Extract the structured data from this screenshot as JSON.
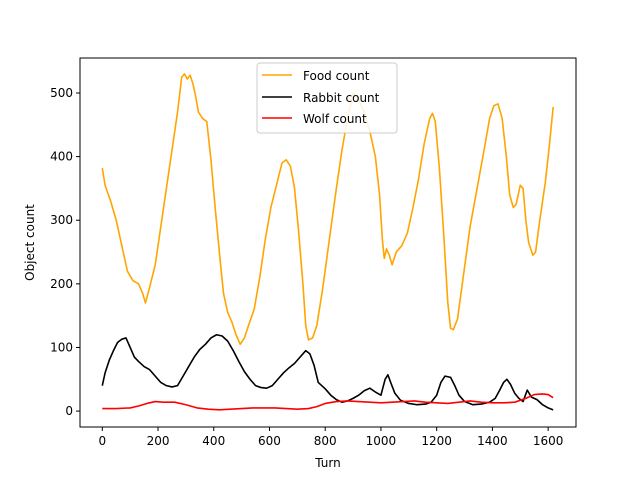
{
  "chart_data": {
    "type": "line",
    "title": "",
    "xlabel": "Turn",
    "ylabel": "Object count",
    "xlim": [
      -80,
      1700
    ],
    "ylim": [
      -25,
      555
    ],
    "xticks": [
      0,
      200,
      400,
      600,
      800,
      1000,
      1200,
      1400,
      1600
    ],
    "yticks": [
      0,
      100,
      200,
      300,
      400,
      500
    ],
    "grid": false,
    "legend_position": "upper center",
    "series": [
      {
        "name": "Food count",
        "color": "#ffa500",
        "points": [
          [
            0,
            382
          ],
          [
            10,
            355
          ],
          [
            30,
            330
          ],
          [
            50,
            300
          ],
          [
            70,
            260
          ],
          [
            90,
            220
          ],
          [
            110,
            205
          ],
          [
            130,
            200
          ],
          [
            145,
            185
          ],
          [
            155,
            170
          ],
          [
            170,
            195
          ],
          [
            190,
            230
          ],
          [
            210,
            290
          ],
          [
            230,
            350
          ],
          [
            250,
            410
          ],
          [
            270,
            470
          ],
          [
            285,
            525
          ],
          [
            295,
            530
          ],
          [
            305,
            522
          ],
          [
            315,
            528
          ],
          [
            325,
            515
          ],
          [
            335,
            495
          ],
          [
            345,
            470
          ],
          [
            360,
            460
          ],
          [
            375,
            455
          ],
          [
            390,
            395
          ],
          [
            405,
            320
          ],
          [
            420,
            250
          ],
          [
            435,
            185
          ],
          [
            450,
            155
          ],
          [
            465,
            140
          ],
          [
            480,
            120
          ],
          [
            495,
            105
          ],
          [
            510,
            115
          ],
          [
            525,
            135
          ],
          [
            545,
            160
          ],
          [
            565,
            210
          ],
          [
            585,
            270
          ],
          [
            605,
            320
          ],
          [
            625,
            355
          ],
          [
            645,
            390
          ],
          [
            660,
            395
          ],
          [
            675,
            385
          ],
          [
            690,
            350
          ],
          [
            705,
            280
          ],
          [
            720,
            200
          ],
          [
            730,
            135
          ],
          [
            740,
            112
          ],
          [
            755,
            115
          ],
          [
            770,
            135
          ],
          [
            790,
            190
          ],
          [
            815,
            270
          ],
          [
            840,
            350
          ],
          [
            860,
            410
          ],
          [
            880,
            460
          ],
          [
            900,
            500
          ],
          [
            920,
            490
          ],
          [
            940,
            470
          ],
          [
            960,
            440
          ],
          [
            980,
            400
          ],
          [
            995,
            340
          ],
          [
            1005,
            270
          ],
          [
            1012,
            240
          ],
          [
            1020,
            255
          ],
          [
            1030,
            245
          ],
          [
            1040,
            230
          ],
          [
            1055,
            250
          ],
          [
            1075,
            260
          ],
          [
            1095,
            280
          ],
          [
            1115,
            320
          ],
          [
            1135,
            365
          ],
          [
            1155,
            420
          ],
          [
            1175,
            460
          ],
          [
            1185,
            468
          ],
          [
            1195,
            455
          ],
          [
            1210,
            380
          ],
          [
            1225,
            280
          ],
          [
            1240,
            170
          ],
          [
            1250,
            130
          ],
          [
            1260,
            128
          ],
          [
            1275,
            145
          ],
          [
            1295,
            210
          ],
          [
            1320,
            290
          ],
          [
            1345,
            350
          ],
          [
            1370,
            410
          ],
          [
            1390,
            460
          ],
          [
            1405,
            480
          ],
          [
            1420,
            483
          ],
          [
            1435,
            460
          ],
          [
            1450,
            400
          ],
          [
            1462,
            340
          ],
          [
            1475,
            320
          ],
          [
            1485,
            325
          ],
          [
            1500,
            355
          ],
          [
            1510,
            350
          ],
          [
            1520,
            300
          ],
          [
            1530,
            265
          ],
          [
            1545,
            245
          ],
          [
            1555,
            250
          ],
          [
            1570,
            300
          ],
          [
            1590,
            360
          ],
          [
            1605,
            420
          ],
          [
            1618,
            478
          ]
        ]
      },
      {
        "name": "Rabbit count",
        "color": "#000000",
        "points": [
          [
            0,
            40
          ],
          [
            10,
            60
          ],
          [
            25,
            80
          ],
          [
            40,
            95
          ],
          [
            55,
            108
          ],
          [
            70,
            113
          ],
          [
            85,
            115
          ],
          [
            100,
            100
          ],
          [
            115,
            85
          ],
          [
            130,
            78
          ],
          [
            150,
            70
          ],
          [
            170,
            65
          ],
          [
            190,
            55
          ],
          [
            210,
            45
          ],
          [
            230,
            40
          ],
          [
            250,
            38
          ],
          [
            270,
            40
          ],
          [
            290,
            55
          ],
          [
            310,
            70
          ],
          [
            330,
            85
          ],
          [
            350,
            97
          ],
          [
            370,
            105
          ],
          [
            390,
            115
          ],
          [
            410,
            120
          ],
          [
            430,
            118
          ],
          [
            450,
            110
          ],
          [
            470,
            95
          ],
          [
            490,
            78
          ],
          [
            510,
            62
          ],
          [
            530,
            50
          ],
          [
            550,
            40
          ],
          [
            570,
            37
          ],
          [
            590,
            36
          ],
          [
            610,
            40
          ],
          [
            630,
            50
          ],
          [
            650,
            60
          ],
          [
            670,
            68
          ],
          [
            690,
            75
          ],
          [
            710,
            85
          ],
          [
            730,
            95
          ],
          [
            745,
            90
          ],
          [
            760,
            72
          ],
          [
            775,
            45
          ],
          [
            800,
            35
          ],
          [
            820,
            25
          ],
          [
            840,
            18
          ],
          [
            860,
            14
          ],
          [
            880,
            16
          ],
          [
            900,
            20
          ],
          [
            920,
            25
          ],
          [
            940,
            32
          ],
          [
            960,
            36
          ],
          [
            980,
            30
          ],
          [
            1000,
            25
          ],
          [
            1015,
            50
          ],
          [
            1025,
            57
          ],
          [
            1035,
            45
          ],
          [
            1050,
            28
          ],
          [
            1070,
            17
          ],
          [
            1100,
            12
          ],
          [
            1130,
            10
          ],
          [
            1160,
            11
          ],
          [
            1180,
            14
          ],
          [
            1200,
            25
          ],
          [
            1215,
            45
          ],
          [
            1230,
            55
          ],
          [
            1250,
            53
          ],
          [
            1265,
            40
          ],
          [
            1280,
            25
          ],
          [
            1300,
            15
          ],
          [
            1330,
            10
          ],
          [
            1360,
            11
          ],
          [
            1390,
            14
          ],
          [
            1410,
            20
          ],
          [
            1425,
            32
          ],
          [
            1440,
            45
          ],
          [
            1452,
            50
          ],
          [
            1465,
            42
          ],
          [
            1480,
            28
          ],
          [
            1495,
            20
          ],
          [
            1510,
            15
          ],
          [
            1525,
            33
          ],
          [
            1540,
            22
          ],
          [
            1560,
            18
          ],
          [
            1580,
            10
          ],
          [
            1600,
            5
          ],
          [
            1618,
            2
          ]
        ]
      },
      {
        "name": "Wolf count",
        "color": "#ff0000",
        "points": [
          [
            0,
            4
          ],
          [
            50,
            4
          ],
          [
            100,
            5
          ],
          [
            130,
            8
          ],
          [
            160,
            12
          ],
          [
            190,
            15
          ],
          [
            220,
            14
          ],
          [
            260,
            14
          ],
          [
            300,
            10
          ],
          [
            340,
            5
          ],
          [
            380,
            3
          ],
          [
            420,
            2
          ],
          [
            460,
            3
          ],
          [
            500,
            4
          ],
          [
            540,
            5
          ],
          [
            580,
            5
          ],
          [
            620,
            5
          ],
          [
            660,
            4
          ],
          [
            700,
            3
          ],
          [
            740,
            4
          ],
          [
            770,
            7
          ],
          [
            800,
            12
          ],
          [
            840,
            15
          ],
          [
            880,
            16
          ],
          [
            920,
            15
          ],
          [
            960,
            14
          ],
          [
            1000,
            13
          ],
          [
            1040,
            14
          ],
          [
            1080,
            15
          ],
          [
            1120,
            16
          ],
          [
            1160,
            14
          ],
          [
            1200,
            13
          ],
          [
            1240,
            12
          ],
          [
            1280,
            14
          ],
          [
            1320,
            16
          ],
          [
            1360,
            14
          ],
          [
            1400,
            13
          ],
          [
            1440,
            13
          ],
          [
            1480,
            14
          ],
          [
            1520,
            20
          ],
          [
            1550,
            26
          ],
          [
            1580,
            27
          ],
          [
            1600,
            26
          ],
          [
            1618,
            21
          ]
        ]
      }
    ]
  }
}
